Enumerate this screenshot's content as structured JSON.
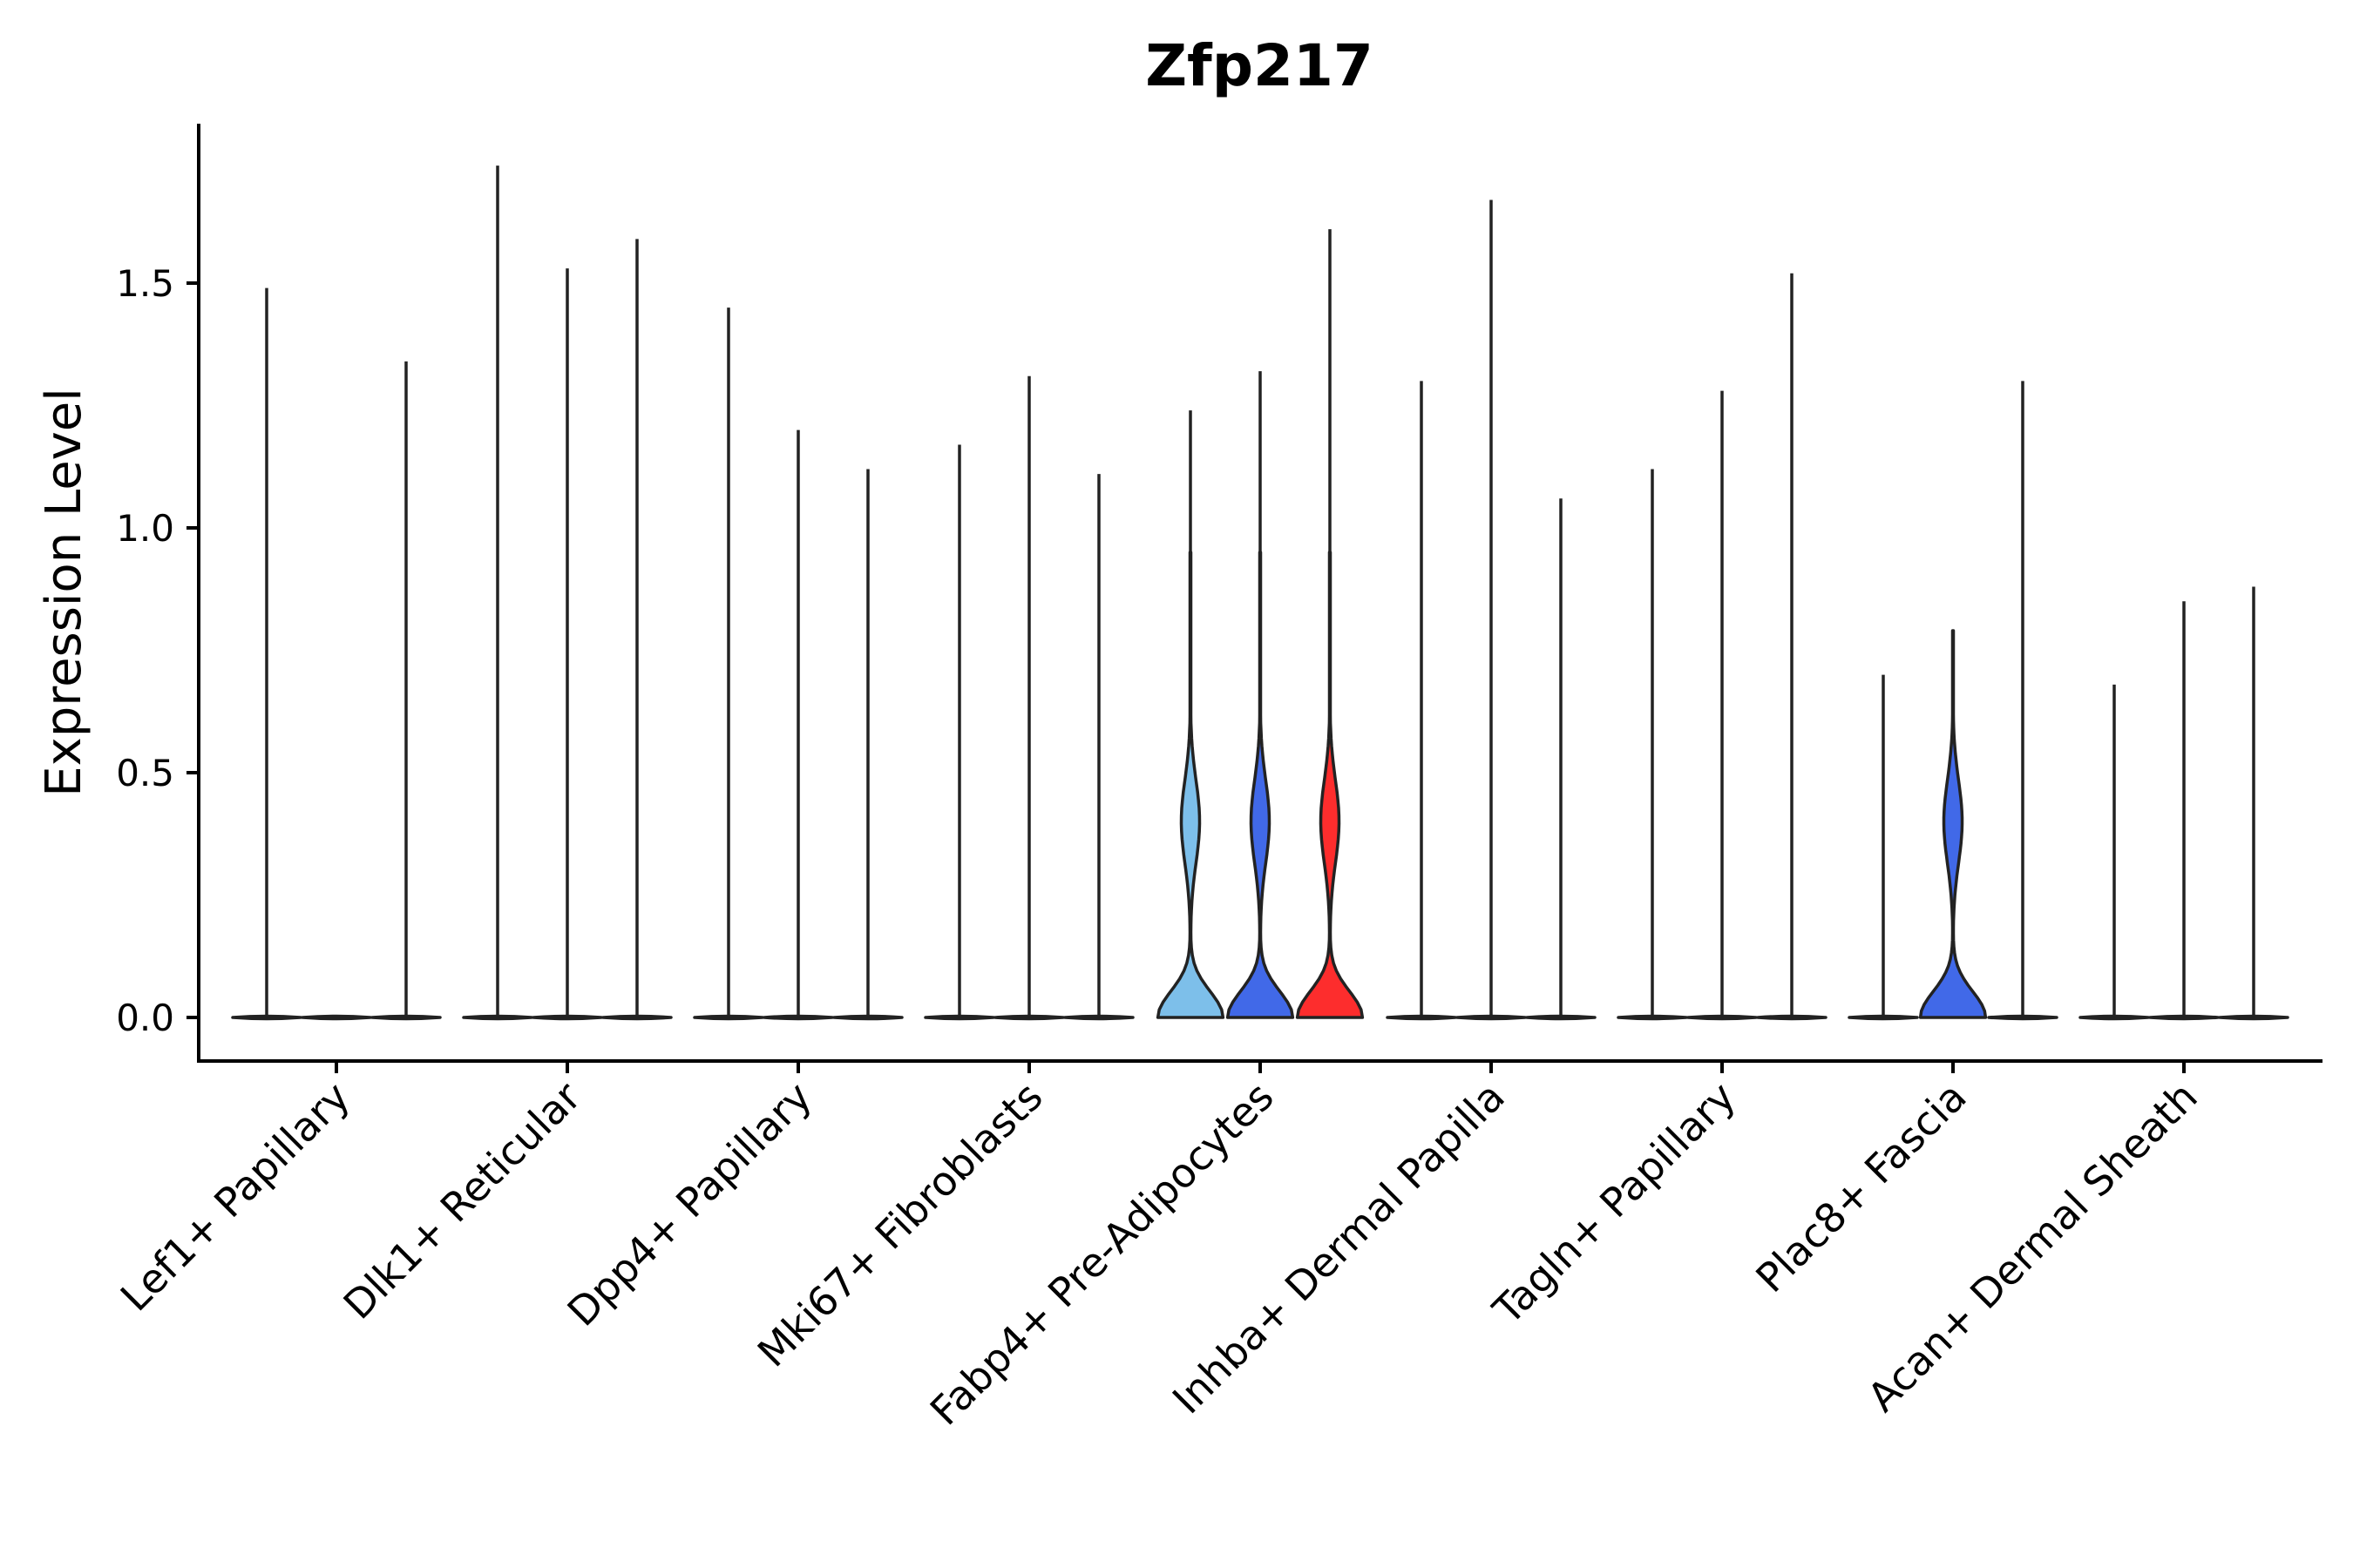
{
  "chart_data": {
    "type": "violin",
    "title": "Zfp217",
    "xlabel": "",
    "ylabel": "Expression Level",
    "ylim": [
      -0.09,
      1.83
    ],
    "yticks": [
      0.0,
      0.5,
      1.0,
      1.5
    ],
    "ytick_labels": [
      "0.0",
      "0.5",
      "1.0",
      "1.5"
    ],
    "groups": [
      "Lef1+ Papillary",
      "Dlk1+ Reticular",
      "Dpp4+ Papillary",
      "Mki67+ Fibroblasts",
      "Fabp4+ Pre-Adipocytes",
      "Inhba+ Dermal Papilla",
      "Tagln+ Papillary",
      "Plac8+ Fascia",
      "Acan+ Dermal Sheath"
    ],
    "conditions_per_group": 3,
    "series": [
      {
        "group": "Lef1+ Papillary",
        "condition": 1,
        "max": 1.49,
        "color": "#e8e8e8",
        "density": "zero"
      },
      {
        "group": "Lef1+ Papillary",
        "condition": 2,
        "max": 0.0,
        "color": "#e8e8e8",
        "density": "zero"
      },
      {
        "group": "Lef1+ Papillary",
        "condition": 3,
        "max": 1.34,
        "color": "#e8e8e8",
        "density": "zero"
      },
      {
        "group": "Dlk1+ Reticular",
        "condition": 1,
        "max": 1.74,
        "color": "#e8e8e8",
        "density": "zero"
      },
      {
        "group": "Dlk1+ Reticular",
        "condition": 2,
        "max": 1.53,
        "color": "#e8e8e8",
        "density": "zero"
      },
      {
        "group": "Dlk1+ Reticular",
        "condition": 3,
        "max": 1.59,
        "color": "#e8e8e8",
        "density": "zero"
      },
      {
        "group": "Dpp4+ Papillary",
        "condition": 1,
        "max": 1.45,
        "color": "#e8e8e8",
        "density": "zero"
      },
      {
        "group": "Dpp4+ Papillary",
        "condition": 2,
        "max": 1.2,
        "color": "#e8e8e8",
        "density": "zero"
      },
      {
        "group": "Dpp4+ Papillary",
        "condition": 3,
        "max": 1.12,
        "color": "#e8e8e8",
        "density": "zero"
      },
      {
        "group": "Mki67+ Fibroblasts",
        "condition": 1,
        "max": 1.17,
        "color": "#e8e8e8",
        "density": "zero"
      },
      {
        "group": "Mki67+ Fibroblasts",
        "condition": 2,
        "max": 1.31,
        "color": "#e8e8e8",
        "density": "zero"
      },
      {
        "group": "Mki67+ Fibroblasts",
        "condition": 3,
        "max": 1.11,
        "color": "#e8e8e8",
        "density": "zero"
      },
      {
        "group": "Fabp4+ Pre-Adipocytes",
        "condition": 1,
        "max": 1.24,
        "color": "#7dbfea",
        "density": "bimodal"
      },
      {
        "group": "Fabp4+ Pre-Adipocytes",
        "condition": 2,
        "max": 1.32,
        "color": "#4169e8",
        "density": "bimodal"
      },
      {
        "group": "Fabp4+ Pre-Adipocytes",
        "condition": 3,
        "max": 1.61,
        "color": "#fd2d2d",
        "density": "bimodal"
      },
      {
        "group": "Inhba+ Dermal Papilla",
        "condition": 1,
        "max": 1.3,
        "color": "#e8e8e8",
        "density": "zero"
      },
      {
        "group": "Inhba+ Dermal Papilla",
        "condition": 2,
        "max": 1.67,
        "color": "#e8e8e8",
        "density": "zero"
      },
      {
        "group": "Inhba+ Dermal Papilla",
        "condition": 3,
        "max": 1.06,
        "color": "#e8e8e8",
        "density": "zero"
      },
      {
        "group": "Tagln+ Papillary",
        "condition": 1,
        "max": 1.12,
        "color": "#e8e8e8",
        "density": "zero"
      },
      {
        "group": "Tagln+ Papillary",
        "condition": 2,
        "max": 1.28,
        "color": "#e8e8e8",
        "density": "zero"
      },
      {
        "group": "Tagln+ Papillary",
        "condition": 3,
        "max": 1.52,
        "color": "#e8e8e8",
        "density": "zero"
      },
      {
        "group": "Plac8+ Fascia",
        "condition": 1,
        "max": 0.7,
        "color": "#e8e8e8",
        "density": "zero"
      },
      {
        "group": "Plac8+ Fascia",
        "condition": 2,
        "max": 0.79,
        "color": "#4169e8",
        "density": "bimodal"
      },
      {
        "group": "Plac8+ Fascia",
        "condition": 3,
        "max": 1.3,
        "color": "#e8e8e8",
        "density": "zero"
      },
      {
        "group": "Acan+ Dermal Sheath",
        "condition": 1,
        "max": 0.68,
        "color": "#e8e8e8",
        "density": "zero"
      },
      {
        "group": "Acan+ Dermal Sheath",
        "condition": 2,
        "max": 0.85,
        "color": "#e8e8e8",
        "density": "zero"
      },
      {
        "group": "Acan+ Dermal Sheath",
        "condition": 3,
        "max": 0.88,
        "color": "#e8e8e8",
        "density": "zero"
      }
    ]
  }
}
